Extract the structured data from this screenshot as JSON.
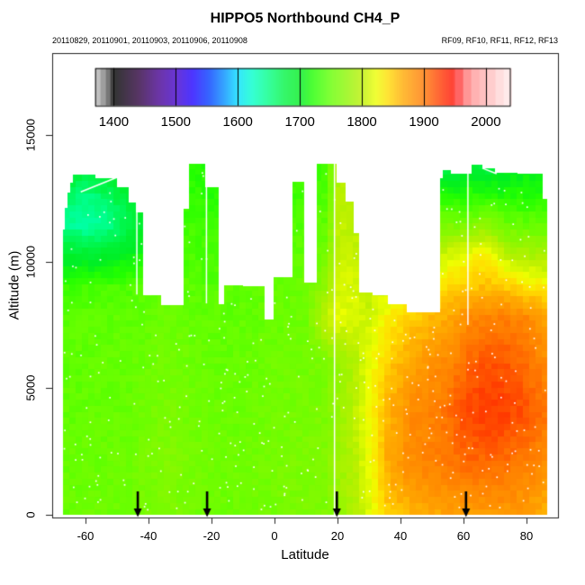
{
  "title": "HIPPO5 Northbound CH4_P",
  "subtitle_left": "20110829, 20110901, 20110903, 20110906, 20110908",
  "subtitle_right": "RF09, RF10, RF11, RF12, RF13",
  "chart_data": {
    "type": "heatmap",
    "title": "HIPPO5 Northbound CH4_P",
    "xlabel": "Latitude",
    "ylabel": "Altitude (m)",
    "xlim": [
      -70.6,
      90
    ],
    "ylim": [
      0,
      18300
    ],
    "x_ticks": [
      -60,
      -40,
      -20,
      0,
      20,
      40,
      60,
      80
    ],
    "y_ticks": [
      0,
      5000,
      10000,
      15000
    ],
    "grid": "off",
    "legend_position": "top-inside",
    "colorbar": {
      "ticks": [
        1400,
        1500,
        1600,
        1700,
        1800,
        1900,
        2000
      ],
      "range": [
        1370,
        2040
      ],
      "gray_below": 1400,
      "pink_steps_above": 1950,
      "palette": [
        [
          1370,
          "#c6c6c6"
        ],
        [
          1378,
          "#9c9c9c"
        ],
        [
          1386,
          "#6f6f6f"
        ],
        [
          1394,
          "#3a3a3a"
        ],
        [
          1400,
          "#000000"
        ],
        [
          1440,
          "#2e0040"
        ],
        [
          1470,
          "#46008c"
        ],
        [
          1500,
          "#4400cc"
        ],
        [
          1525,
          "#2200ff"
        ],
        [
          1555,
          "#0044ff"
        ],
        [
          1580,
          "#0099ff"
        ],
        [
          1600,
          "#00e0ff"
        ],
        [
          1622,
          "#00ffcc"
        ],
        [
          1648,
          "#00ff88"
        ],
        [
          1675,
          "#00f544"
        ],
        [
          1700,
          "#00ee22"
        ],
        [
          1720,
          "#22ff00"
        ],
        [
          1750,
          "#66ff00"
        ],
        [
          1780,
          "#99f500"
        ],
        [
          1800,
          "#bbf000"
        ],
        [
          1822,
          "#eeff00"
        ],
        [
          1840,
          "#ffe000"
        ],
        [
          1866,
          "#ffaa00"
        ],
        [
          1900,
          "#ff7700"
        ],
        [
          1922,
          "#ff4400"
        ],
        [
          1945,
          "#ff1500"
        ],
        [
          1958,
          "#ff4444"
        ],
        [
          1972,
          "#ff8888"
        ],
        [
          1988,
          "#ffaaaa"
        ],
        [
          2005,
          "#ffbbbb"
        ],
        [
          2020,
          "#ffd5d5"
        ],
        [
          2040,
          "#ffecec"
        ]
      ]
    },
    "field": {
      "lats": [
        -67,
        -60,
        -52,
        -45,
        -40,
        -33,
        -27,
        -21,
        -15,
        -9,
        -3,
        4,
        10,
        16,
        20,
        25,
        30,
        36,
        44,
        52,
        57,
        62,
        67,
        73,
        80,
        87
      ],
      "alts": [
        0,
        2000,
        4000,
        6000,
        7800,
        9000,
        10300,
        11500,
        12600,
        13900
      ],
      "values": [
        [
          1752,
          1755,
          1753,
          1757,
          1760,
          1763,
          1757,
          1755,
          1753,
          1755,
          1757,
          1760,
          1762,
          1764,
          1778,
          1790,
          1815,
          1850,
          1862,
          1868,
          1872,
          1875,
          1875,
          1878,
          1872,
          1860
        ],
        [
          1750,
          1752,
          1753,
          1755,
          1762,
          1766,
          1760,
          1756,
          1755,
          1756,
          1758,
          1762,
          1763,
          1766,
          1782,
          1795,
          1822,
          1868,
          1888,
          1895,
          1900,
          1905,
          1906,
          1903,
          1895,
          1880
        ],
        [
          1748,
          1750,
          1751,
          1752,
          1758,
          1762,
          1757,
          1754,
          1752,
          1754,
          1756,
          1758,
          1760,
          1763,
          1780,
          1798,
          1825,
          1862,
          1888,
          1895,
          1910,
          1922,
          1928,
          1924,
          1916,
          1898
        ],
        [
          1746,
          1748,
          1749,
          1750,
          1754,
          1758,
          1754,
          1751,
          1750,
          1751,
          1754,
          1756,
          1757,
          1760,
          1776,
          1792,
          1818,
          1850,
          1872,
          1885,
          1895,
          1910,
          1915,
          1916,
          1903,
          1885
        ],
        [
          1744,
          1746,
          1747,
          1748,
          1750,
          1753,
          1751,
          1749,
          1747,
          1749,
          1751,
          1753,
          1755,
          1805,
          1818,
          1815,
          1808,
          1832,
          1850,
          1862,
          1870,
          1888,
          1892,
          1895,
          1888,
          1868
        ],
        [
          1730,
          1735,
          1738,
          1740,
          1745,
          1748,
          1745,
          1742,
          1745,
          1748,
          1750,
          1752,
          1755,
          1775,
          1812,
          1812,
          1800,
          1810,
          1820,
          1835,
          1848,
          1852,
          1858,
          1850,
          1840,
          1832
        ],
        [
          1690,
          1688,
          1692,
          1705,
          1720,
          1730,
          1738,
          1736,
          1738,
          1740,
          1742,
          1745,
          1748,
          1758,
          1806,
          1806,
          1790,
          1790,
          1795,
          1800,
          1815,
          1822,
          1832,
          1800,
          1788,
          1786
        ],
        [
          1645,
          1635,
          1648,
          1680,
          1700,
          1720,
          1735,
          1730,
          1732,
          1735,
          1738,
          1740,
          1742,
          1748,
          1802,
          1800,
          1780,
          1775,
          1770,
          1762,
          1760,
          1758,
          1775,
          1752,
          1748,
          1750
        ],
        [
          1665,
          1650,
          1668,
          1692,
          1700,
          1715,
          1728,
          1722,
          1725,
          1728,
          1730,
          1732,
          1735,
          1740,
          1800,
          1798,
          1760,
          1755,
          1740,
          1722,
          1718,
          1725,
          1722,
          1718,
          1720,
          1724
        ],
        [
          1700,
          1692,
          1700,
          1705,
          1710,
          1718,
          1722,
          1718,
          1720,
          1722,
          1725,
          1728,
          1730,
          1732,
          1796,
          1795,
          1770,
          1765,
          1755,
          1668,
          1662,
          1690,
          1672,
          1695,
          1700,
          1702
        ]
      ]
    },
    "mask_columns": [
      [
        -67.3,
        -66.6,
        11300
      ],
      [
        -66.6,
        -65.8,
        12150
      ],
      [
        -65.8,
        -65.0,
        12750
      ],
      [
        -65.0,
        -64.0,
        13150
      ],
      [
        -64.0,
        -57.0,
        13450
      ],
      [
        -57.0,
        -50.0,
        13300
      ],
      [
        -50.0,
        -46.5,
        12950
      ],
      [
        -46.5,
        -44.0,
        12350
      ],
      [
        -44.0,
        -41.8,
        11950
      ],
      [
        -41.8,
        -36.0,
        8700
      ],
      [
        -36.0,
        -29.0,
        8300
      ],
      [
        -29.0,
        -27.2,
        12100
      ],
      [
        -27.2,
        -22.2,
        13870
      ],
      [
        -22.2,
        -17.8,
        12950
      ],
      [
        -17.8,
        -16.0,
        8350
      ],
      [
        -16.0,
        -10.0,
        9070
      ],
      [
        -10.0,
        -3.4,
        9050
      ],
      [
        -3.4,
        -0.5,
        7720
      ],
      [
        -0.5,
        5.5,
        9400
      ],
      [
        5.5,
        9.2,
        13160
      ],
      [
        9.2,
        13.3,
        9200
      ],
      [
        13.3,
        19.6,
        13870
      ],
      [
        19.6,
        22.5,
        13150
      ],
      [
        22.5,
        25.0,
        12400
      ],
      [
        25.0,
        26.8,
        11150
      ],
      [
        26.8,
        31.0,
        8800
      ],
      [
        31.0,
        36.0,
        8700
      ],
      [
        36.0,
        42.0,
        8350
      ],
      [
        42.0,
        52.3,
        8000
      ],
      [
        52.3,
        53.3,
        13320
      ],
      [
        53.3,
        56.0,
        13620
      ],
      [
        56.0,
        62.3,
        13500
      ],
      [
        62.3,
        66.0,
        13830
      ],
      [
        66.0,
        70.0,
        13720
      ],
      [
        70.0,
        77.0,
        13520
      ],
      [
        77.0,
        85.0,
        13480
      ],
      [
        85.0,
        86.4,
        12500
      ]
    ],
    "gap_lines": [
      {
        "lat": -43.7,
        "alt_range": [
          8700,
          11950
        ]
      },
      {
        "lat": -21.6,
        "alt_range": [
          8350,
          12950
        ]
      },
      {
        "lat": 19.05,
        "alt_range": [
          0,
          13870
        ]
      },
      {
        "lat": 61.4,
        "alt_range": [
          7500,
          13830
        ]
      }
    ],
    "gap_segments": [
      [
        -61.5,
        12750,
        -48.0,
        13430
      ],
      [
        66.0,
        13690,
        70.5,
        13470
      ]
    ],
    "arrows_lat": [
      -43.4,
      -21.4,
      19.8,
      60.8
    ],
    "speckle_count": 420
  }
}
